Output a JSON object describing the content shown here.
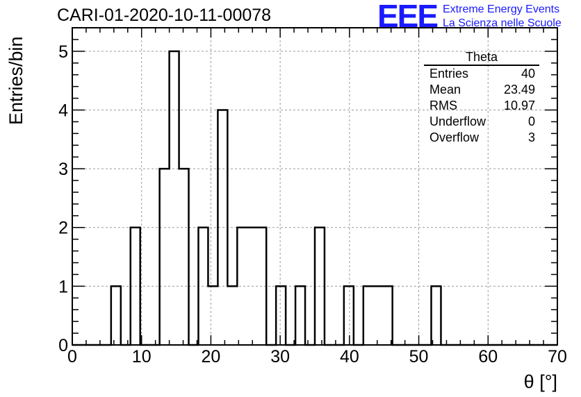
{
  "title": "CARI-01-2020-10-11-00078",
  "logo": {
    "mark": "EEE",
    "line1": "Extreme Energy Events",
    "line2": "La Scienza nelle Scuole",
    "color": "#1a1aff"
  },
  "stats_box": {
    "name": "Theta",
    "rows": [
      {
        "label": "Entries",
        "value": "40"
      },
      {
        "label": "Mean",
        "value": "23.49"
      },
      {
        "label": "RMS",
        "value": "10.97"
      },
      {
        "label": "Underflow",
        "value": "0"
      },
      {
        "label": "Overflow",
        "value": "3"
      }
    ]
  },
  "chart_data": {
    "type": "bar",
    "title": "CARI-01-2020-10-11-00078",
    "xlabel": "θ [°]",
    "ylabel": "Entries/bin",
    "xlim": [
      0,
      70
    ],
    "ylim": [
      0,
      5.4
    ],
    "xticks": [
      0,
      10,
      20,
      30,
      40,
      50,
      60,
      70
    ],
    "yticks": [
      0,
      1,
      2,
      3,
      4,
      5
    ],
    "grid": true,
    "bin_width": 1.4,
    "bin_edges_start": 0,
    "bin_counts": [
      0,
      0,
      0,
      0,
      1,
      0,
      2,
      0,
      0,
      3,
      5,
      3,
      0,
      2,
      1,
      4,
      1,
      2,
      2,
      2,
      0,
      1,
      0,
      1,
      0,
      2,
      0,
      0,
      1,
      0,
      1,
      1,
      1,
      0,
      0,
      0,
      0,
      1,
      0,
      0,
      0,
      0,
      0,
      0,
      0,
      0,
      0,
      0,
      0,
      0
    ],
    "line_color": "#000000"
  }
}
